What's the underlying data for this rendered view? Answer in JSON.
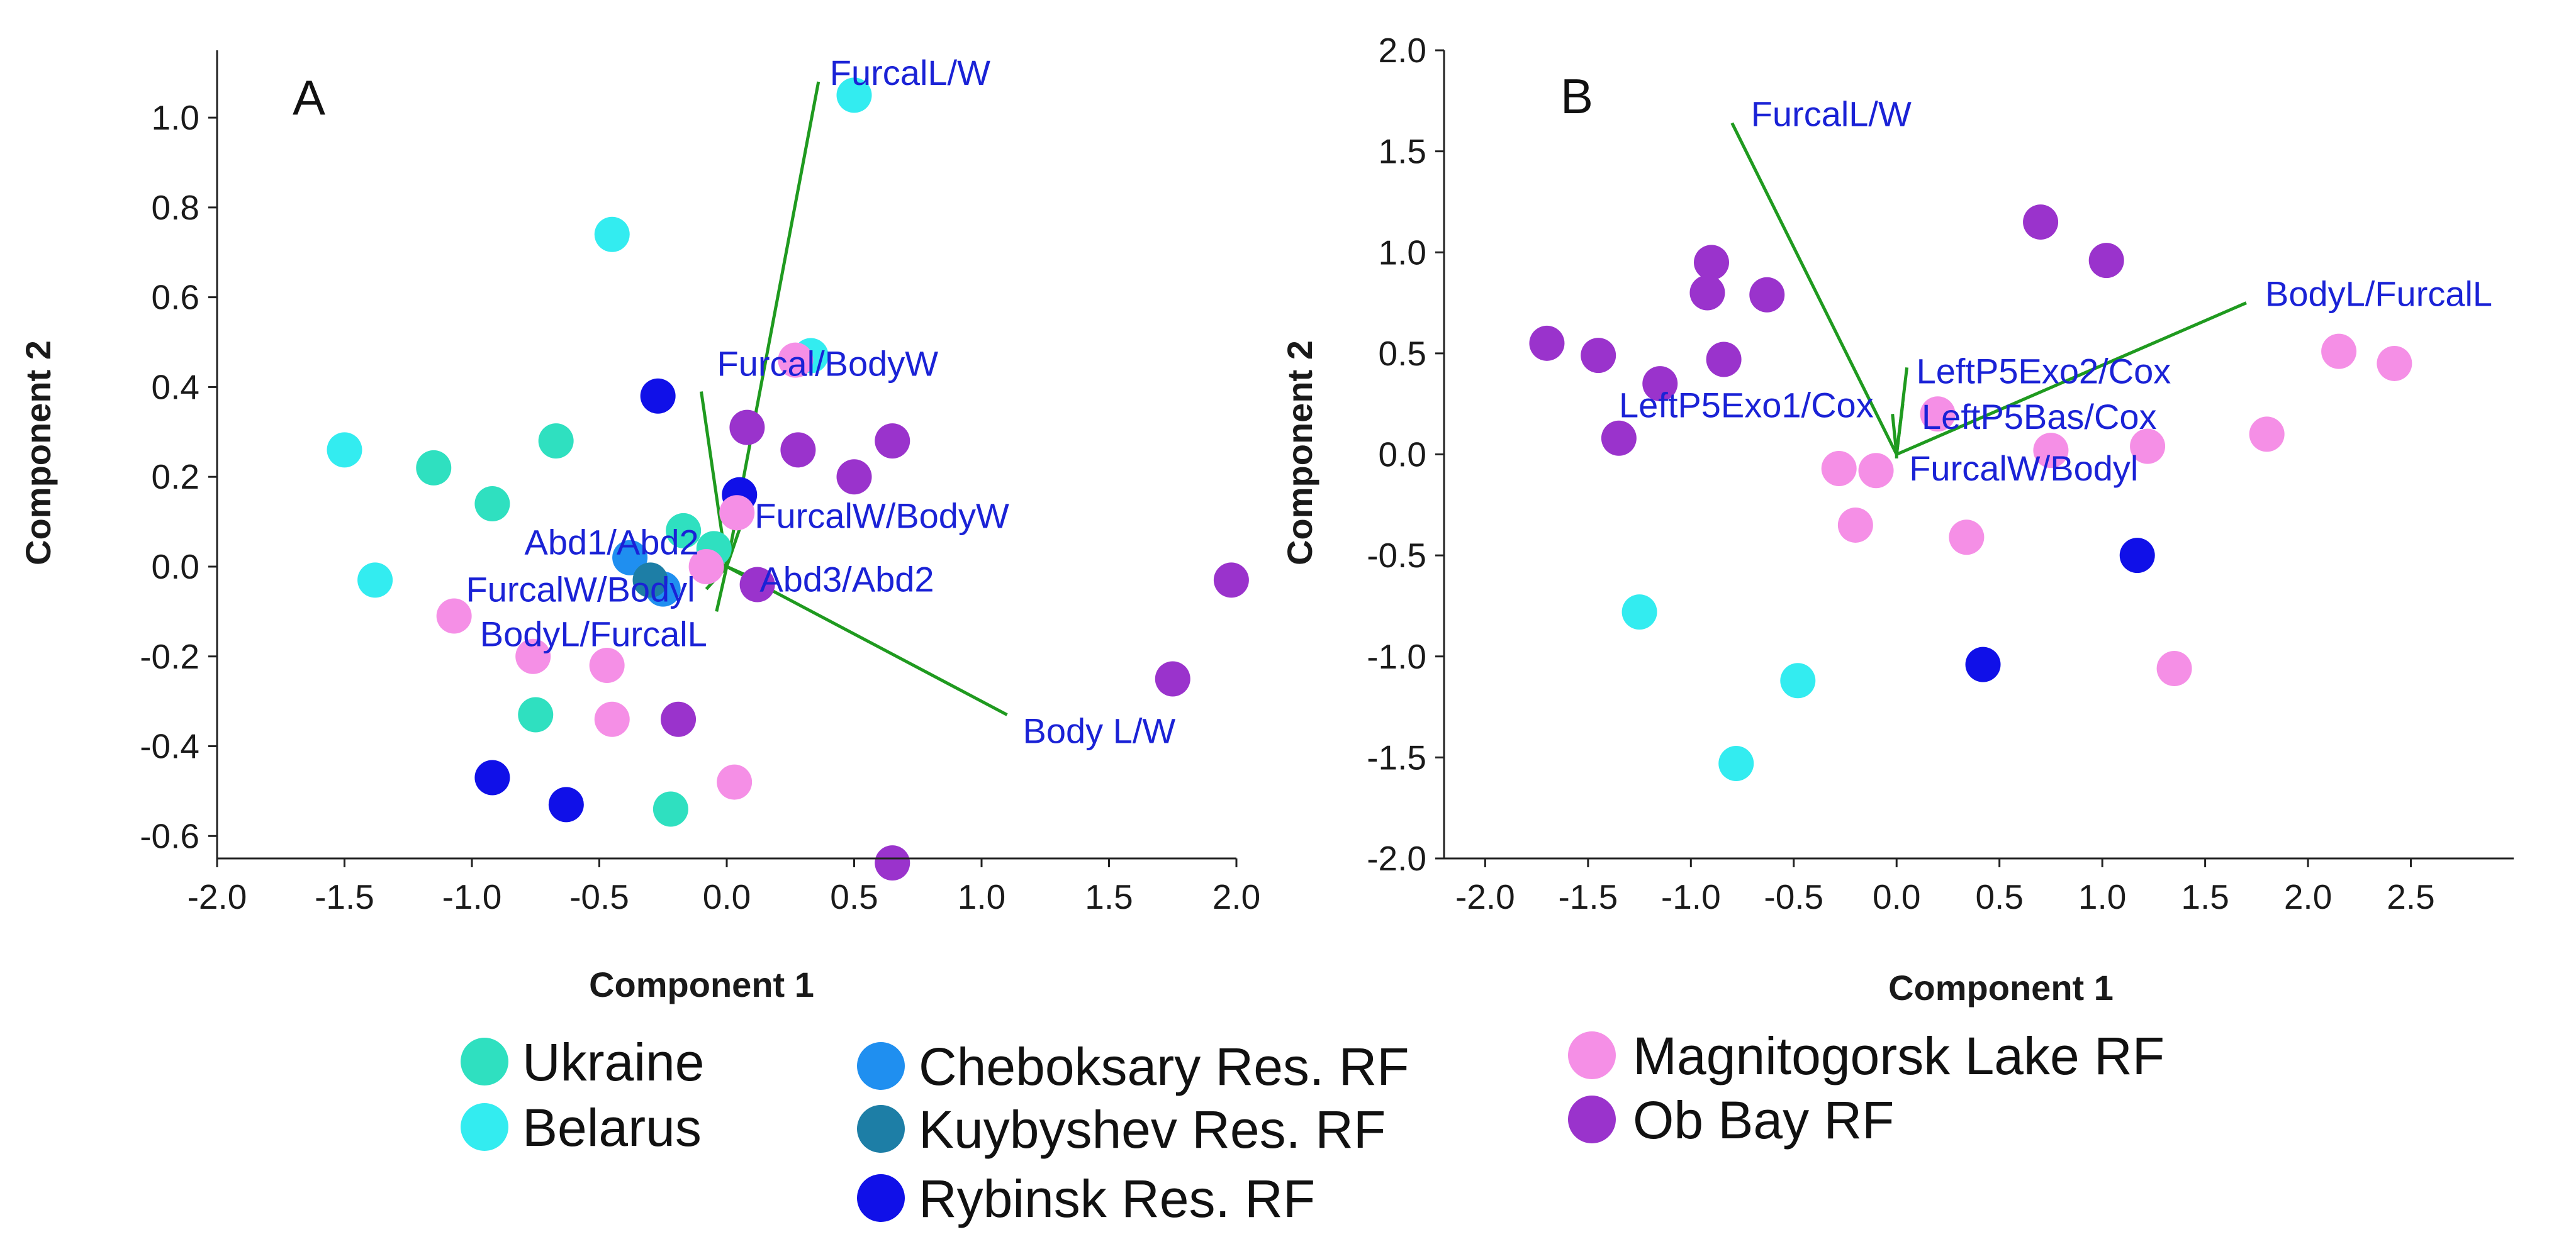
{
  "chart_data": [
    {
      "type": "scatter",
      "panel": "A",
      "xlabel": "Component 1",
      "ylabel": "Component 2",
      "xlim": [
        -2.0,
        2.0
      ],
      "ylim": [
        -0.65,
        1.15
      ],
      "xticks": [
        "-2.0",
        "-1.5",
        "-1.0",
        "-0.5",
        "0.0",
        "0.5",
        "1.0",
        "1.5",
        "2.0"
      ],
      "yticks": [
        "-0.6",
        "-0.4",
        "-0.2",
        "0.0",
        "0.2",
        "0.4",
        "0.6",
        "0.8",
        "1.0"
      ],
      "loadings": [
        {
          "label": "FurcalL/W",
          "x": 0.36,
          "y": 1.08
        },
        {
          "label": "Furcal/BodyW",
          "x": -0.1,
          "y": 0.39
        },
        {
          "label": "FurcalW/BodyW",
          "x": 0.06,
          "y": 0.1
        },
        {
          "label": "Abd1/Abd2",
          "x": -0.06,
          "y": 0.02
        },
        {
          "label": "Abd3/Abd2",
          "x": 0.08,
          "y": -0.02
        },
        {
          "label": "FurcalW/Bodyl",
          "x": -0.08,
          "y": -0.05
        },
        {
          "label": "BodyL/FurcalL",
          "x": -0.04,
          "y": -0.1
        },
        {
          "label": "Body L/W",
          "x": 1.1,
          "y": -0.33
        }
      ],
      "series": [
        {
          "name": "Ukraine",
          "points": [
            [
              -1.15,
              0.22
            ],
            [
              -0.92,
              0.14
            ],
            [
              -0.67,
              0.28
            ],
            [
              -0.17,
              0.08
            ],
            [
              -0.75,
              -0.33
            ],
            [
              -0.22,
              -0.54
            ],
            [
              -0.05,
              0.04
            ]
          ]
        },
        {
          "name": "Belarus",
          "points": [
            [
              0.5,
              1.05
            ],
            [
              -0.45,
              0.74
            ],
            [
              0.33,
              0.47
            ],
            [
              -1.5,
              0.26
            ],
            [
              -1.38,
              -0.03
            ]
          ]
        },
        {
          "name": "Cheboksary Res. RF",
          "points": [
            [
              -0.38,
              0.02
            ],
            [
              -0.25,
              -0.05
            ]
          ]
        },
        {
          "name": "Kuybyshev Res. RF",
          "points": [
            [
              -0.3,
              -0.03
            ]
          ]
        },
        {
          "name": "Rybinsk Res. RF",
          "points": [
            [
              -0.27,
              0.38
            ],
            [
              0.05,
              0.16
            ],
            [
              -0.92,
              -0.47
            ],
            [
              -0.63,
              -0.53
            ]
          ]
        },
        {
          "name": "Magnitogorsk Lake RF",
          "points": [
            [
              0.27,
              0.46
            ],
            [
              0.04,
              0.12
            ],
            [
              -0.08,
              0.0
            ],
            [
              -1.07,
              -0.11
            ],
            [
              -0.76,
              -0.2
            ],
            [
              -0.47,
              -0.22
            ],
            [
              -0.45,
              -0.34
            ],
            [
              0.03,
              -0.48
            ]
          ]
        },
        {
          "name": "Ob Bay RF",
          "points": [
            [
              0.08,
              0.31
            ],
            [
              0.28,
              0.26
            ],
            [
              0.65,
              0.28
            ],
            [
              0.5,
              0.2
            ],
            [
              0.12,
              -0.04
            ],
            [
              1.98,
              -0.03
            ],
            [
              1.75,
              -0.25
            ],
            [
              -0.19,
              -0.34
            ],
            [
              0.65,
              -0.66
            ]
          ]
        }
      ]
    },
    {
      "type": "scatter",
      "panel": "B",
      "xlabel": "Component 1",
      "ylabel": "Component 2",
      "xlim": [
        -2.2,
        3.0
      ],
      "ylim": [
        -2.0,
        2.0
      ],
      "xticks": [
        "-2.0",
        "-1.5",
        "-1.0",
        "-0.5",
        "0.0",
        "0.5",
        "1.0",
        "1.5",
        "2.0",
        "2.5"
      ],
      "yticks": [
        "-2.0",
        "-1.5",
        "-1.0",
        "-0.5",
        "0.0",
        "0.5",
        "1.0",
        "1.5",
        "2.0"
      ],
      "loadings": [
        {
          "label": "FurcalL/W",
          "x": -0.8,
          "y": 1.64
        },
        {
          "label": "BodyL/FurcalL",
          "x": 1.7,
          "y": 0.75
        },
        {
          "label": "LeftP5Exo2/Cox",
          "x": 0.05,
          "y": 0.43
        },
        {
          "label": "LeftP5Bas/Cox",
          "x": 0.03,
          "y": 0.25
        },
        {
          "label": "LeftP5Exo1/Cox",
          "x": -0.02,
          "y": 0.2
        },
        {
          "label": "FurcalW/Bodyl",
          "x": 0.0,
          "y": -0.02
        }
      ],
      "series": [
        {
          "name": "Ukraine",
          "points": []
        },
        {
          "name": "Belarus",
          "points": [
            [
              -1.25,
              -0.78
            ],
            [
              -0.48,
              -1.12
            ],
            [
              -0.78,
              -1.53
            ]
          ]
        },
        {
          "name": "Cheboksary Res. RF",
          "points": []
        },
        {
          "name": "Kuybyshev Res. RF",
          "points": []
        },
        {
          "name": "Rybinsk Res. RF",
          "points": [
            [
              1.17,
              -0.5
            ],
            [
              0.42,
              -1.04
            ]
          ]
        },
        {
          "name": "Magnitogorsk Lake RF",
          "points": [
            [
              0.2,
              0.2
            ],
            [
              -0.28,
              -0.07
            ],
            [
              -0.1,
              -0.08
            ],
            [
              -0.2,
              -0.35
            ],
            [
              0.34,
              -0.41
            ],
            [
              0.75,
              0.02
            ],
            [
              1.22,
              0.04
            ],
            [
              1.8,
              0.1
            ],
            [
              2.15,
              0.51
            ],
            [
              2.42,
              0.45
            ],
            [
              1.35,
              -1.06
            ]
          ]
        },
        {
          "name": "Ob Bay RF",
          "points": [
            [
              -1.7,
              0.55
            ],
            [
              -1.45,
              0.49
            ],
            [
              -1.15,
              0.35
            ],
            [
              -1.35,
              0.08
            ],
            [
              -0.9,
              0.95
            ],
            [
              -0.92,
              0.8
            ],
            [
              -0.63,
              0.79
            ],
            [
              -0.84,
              0.47
            ],
            [
              0.7,
              1.15
            ],
            [
              1.02,
              0.96
            ]
          ]
        }
      ]
    }
  ],
  "legend": [
    {
      "label": "Ukraine",
      "color": "#2fe0c0"
    },
    {
      "label": "Belarus",
      "color": "#33ecf0"
    },
    {
      "label": "Cheboksary Res. RF",
      "color": "#1f8ff0"
    },
    {
      "label": "Kuybyshev Res. RF",
      "color": "#1d7ea6"
    },
    {
      "label": "Rybinsk Res. RF",
      "color": "#1010e8"
    },
    {
      "label": "Magnitogorsk Lake RF",
      "color": "#f58fe6"
    },
    {
      "label": "Ob Bay RF",
      "color": "#9a33cc"
    }
  ],
  "colors": {
    "loading_line": "#1f9a1f",
    "loading_text": "#1a22d6",
    "axis": "#222222"
  }
}
